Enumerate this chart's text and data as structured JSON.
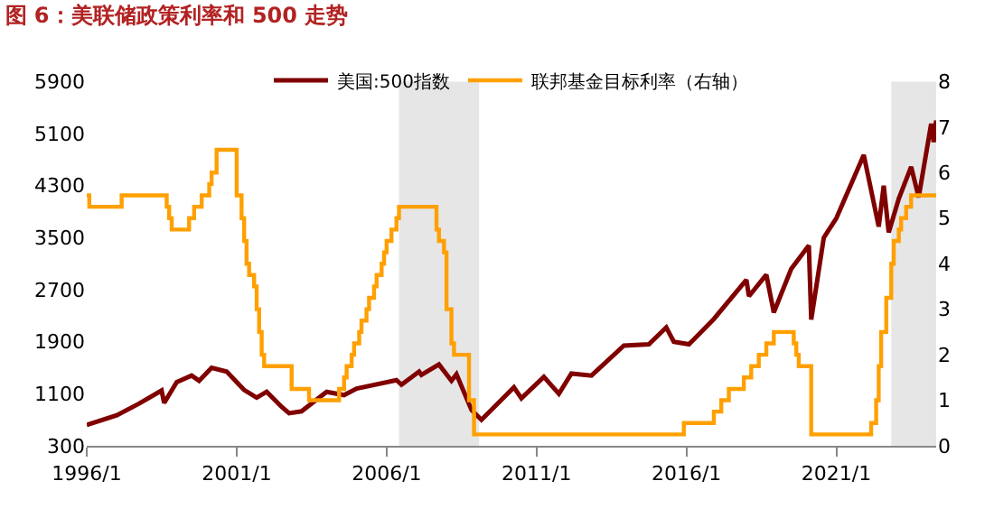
{
  "chart_data": {
    "type": "line",
    "title": "图 6：美联储政策利率和 500 走势",
    "series": [
      {
        "name": "美国:500指数",
        "color": "#800000",
        "x": [
          "1996-01",
          "1997-01",
          "1997-10",
          "1998-07",
          "1998-08",
          "1999-01",
          "1999-07",
          "1999-10",
          "2000-03",
          "2000-09",
          "2001-04",
          "2001-09",
          "2002-01",
          "2002-07",
          "2002-10",
          "2003-03",
          "2004-01",
          "2004-08",
          "2005-01",
          "2006-05",
          "2006-07",
          "2007-02",
          "2007-03",
          "2007-10",
          "2008-03",
          "2008-05",
          "2008-11",
          "2009-03",
          "2010-04",
          "2010-07",
          "2011-04",
          "2011-10",
          "2012-03",
          "2012-11",
          "2013-12",
          "2014-10",
          "2015-05",
          "2015-08",
          "2016-02",
          "2016-12",
          "2018-01",
          "2018-02",
          "2018-09",
          "2018-12",
          "2019-07",
          "2020-02",
          "2020-03",
          "2020-08",
          "2021-01",
          "2021-12",
          "2022-06",
          "2022-08",
          "2022-10",
          "2023-02",
          "2023-07",
          "2023-10",
          "2024-03",
          "2024-04",
          "2024-05"
        ],
        "values": [
          620,
          770,
          950,
          1150,
          960,
          1280,
          1380,
          1300,
          1500,
          1440,
          1160,
          1040,
          1130,
          900,
          800,
          830,
          1130,
          1080,
          1180,
          1310,
          1240,
          1440,
          1390,
          1550,
          1300,
          1400,
          850,
          700,
          1200,
          1030,
          1360,
          1100,
          1410,
          1380,
          1840,
          1860,
          2120,
          1900,
          1860,
          2250,
          2850,
          2600,
          2930,
          2350,
          3020,
          3380,
          2240,
          3500,
          3800,
          4770,
          3670,
          4300,
          3580,
          4100,
          4590,
          4120,
          5250,
          4970,
          5300
        ]
      },
      {
        "name": "联邦基金目标利率（右轴）",
        "type": "step",
        "axis": "y2",
        "color": "#ffa000",
        "x": [
          "1996-01",
          "1996-02",
          "1997-03",
          "1998-09",
          "1998-10",
          "1998-11",
          "1999-06",
          "1999-08",
          "1999-11",
          "2000-02",
          "2000-03",
          "2000-05",
          "2001-01",
          "2001-03",
          "2001-04",
          "2001-05",
          "2001-06",
          "2001-08",
          "2001-09",
          "2001-10",
          "2001-11",
          "2001-12",
          "2002-11",
          "2003-06",
          "2004-06",
          "2004-08",
          "2004-09",
          "2004-11",
          "2004-12",
          "2005-02",
          "2005-03",
          "2005-05",
          "2005-06",
          "2005-08",
          "2005-09",
          "2005-11",
          "2005-12",
          "2006-01",
          "2006-03",
          "2006-05",
          "2006-06",
          "2007-09",
          "2007-10",
          "2007-12",
          "2008-01",
          "2008-03",
          "2008-04",
          "2008-10",
          "2008-12",
          "2015-12",
          "2016-12",
          "2017-03",
          "2017-06",
          "2017-12",
          "2018-03",
          "2018-06",
          "2018-09",
          "2018-12",
          "2019-08",
          "2019-09",
          "2019-10",
          "2020-03",
          "2022-03",
          "2022-05",
          "2022-06",
          "2022-07",
          "2022-09",
          "2022-11",
          "2022-12",
          "2023-02",
          "2023-03",
          "2023-05",
          "2023-07",
          "2024-05"
        ],
        "values": [
          5.5,
          5.25,
          5.5,
          5.25,
          5.0,
          4.75,
          5.0,
          5.25,
          5.5,
          5.75,
          6.0,
          6.5,
          5.5,
          5.0,
          4.5,
          4.0,
          3.75,
          3.5,
          3.0,
          2.5,
          2.0,
          1.75,
          1.25,
          1.0,
          1.25,
          1.5,
          1.75,
          2.0,
          2.25,
          2.5,
          2.75,
          3.0,
          3.25,
          3.5,
          3.75,
          4.0,
          4.25,
          4.5,
          4.75,
          5.0,
          5.25,
          4.75,
          4.5,
          4.25,
          3.0,
          2.25,
          2.0,
          1.0,
          0.25,
          0.5,
          0.75,
          1.0,
          1.25,
          1.5,
          1.75,
          2.0,
          2.25,
          2.5,
          2.25,
          2.0,
          1.75,
          0.25,
          0.5,
          1.0,
          1.75,
          2.5,
          3.25,
          4.0,
          4.5,
          4.75,
          5.0,
          5.25,
          5.5,
          5.5
        ]
      }
    ],
    "xlim": [
      "1996-01",
      "2024-05"
    ],
    "xticks": [
      {
        "value": "1996-01",
        "label": "1996/1"
      },
      {
        "value": "2001-01",
        "label": "2001/1"
      },
      {
        "value": "2006-01",
        "label": "2006/1"
      },
      {
        "value": "2011-01",
        "label": "2011/1"
      },
      {
        "value": "2016-01",
        "label": "2016/1"
      },
      {
        "value": "2021-01",
        "label": "2021/1"
      }
    ],
    "ylim": [
      300,
      5900
    ],
    "yticks": [
      300,
      1100,
      1900,
      2700,
      3500,
      4300,
      5100,
      5900
    ],
    "y2lim": [
      0,
      8
    ],
    "y2ticks": [
      0,
      1,
      2,
      3,
      4,
      5,
      6,
      7,
      8
    ],
    "bands": [
      {
        "axis": "x",
        "from": "2006-06",
        "to": "2009-02",
        "color": "#e6e6e6"
      },
      {
        "axis": "x",
        "from": "2022-11",
        "to": "2024-05",
        "color": "#e6e6e6"
      }
    ],
    "grid": false,
    "legend": "top"
  }
}
